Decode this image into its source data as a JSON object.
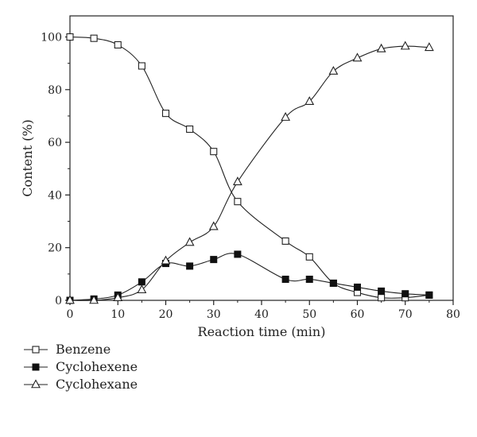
{
  "chart_data": {
    "type": "line",
    "xlabel": "Reaction time (min)",
    "ylabel": "Content (%)",
    "xlim": [
      0,
      80
    ],
    "ylim": [
      0,
      108
    ],
    "xticks": [
      0,
      10,
      20,
      30,
      40,
      50,
      60,
      70,
      80
    ],
    "yticks": [
      0,
      20,
      40,
      60,
      80,
      100
    ],
    "grid": false,
    "legend_position": "bottom-left, below plot",
    "series": [
      {
        "name": "Benzene",
        "marker": "open-square",
        "x": [
          0,
          5,
          10,
          15,
          20,
          25,
          30,
          35,
          45,
          50,
          55,
          60,
          65,
          70,
          75
        ],
        "y": [
          100,
          99.5,
          97,
          89,
          71,
          65,
          56.5,
          37.5,
          22.5,
          16.5,
          6.5,
          3,
          1,
          1,
          2
        ]
      },
      {
        "name": "Cyclohexene",
        "marker": "filled-square",
        "x": [
          0,
          5,
          10,
          15,
          20,
          25,
          30,
          35,
          45,
          50,
          55,
          60,
          65,
          70,
          75
        ],
        "y": [
          0,
          0.5,
          2,
          7,
          14,
          13,
          15.5,
          17.5,
          8,
          8,
          6.5,
          5,
          3.5,
          2.5,
          2
        ]
      },
      {
        "name": "Cyclohexane",
        "marker": "open-triangle",
        "x": [
          0,
          5,
          10,
          15,
          20,
          25,
          30,
          35,
          45,
          50,
          55,
          60,
          65,
          70,
          75
        ],
        "y": [
          0,
          0,
          1,
          4,
          15,
          22,
          28,
          45,
          69.5,
          75.5,
          87,
          92,
          95.5,
          96.5,
          96
        ]
      }
    ]
  }
}
